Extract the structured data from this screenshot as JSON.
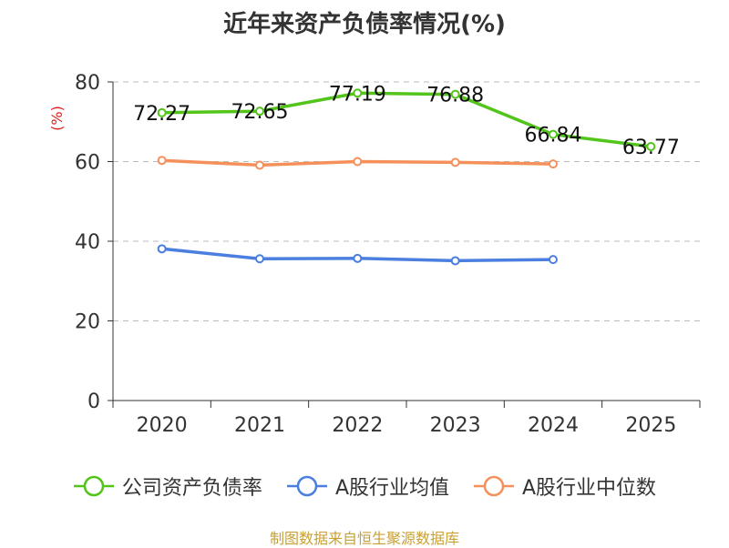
{
  "chart_data": {
    "type": "line",
    "title": "近年来资产负债率情况(%)",
    "xlabel": "",
    "ylabel": "(%)",
    "ylim": [
      0,
      80
    ],
    "yticks": [
      0,
      20,
      40,
      60,
      80
    ],
    "categories": [
      "2020",
      "2021",
      "2022",
      "2023",
      "2024",
      "2025"
    ],
    "grid": true,
    "legend_position": "bottom",
    "series": [
      {
        "name": "公司资产负债率",
        "color": "#52c41a",
        "values": [
          72.27,
          72.65,
          77.19,
          76.88,
          66.84,
          63.77
        ],
        "show_labels": true,
        "labels": [
          "72.27",
          "72.65",
          "77.19",
          "76.88",
          "66.84",
          "63.77"
        ]
      },
      {
        "name": "A股行业均值",
        "color": "#4a7fe0",
        "values": [
          38.1,
          35.6,
          35.7,
          35.1,
          35.4,
          null
        ],
        "show_labels": false
      },
      {
        "name": "A股行业中位数",
        "color": "#f5905a",
        "values": [
          60.3,
          59.1,
          60.0,
          59.8,
          59.4,
          null
        ],
        "show_labels": false
      }
    ]
  },
  "source": "制图数据来自恒生聚源数据库"
}
